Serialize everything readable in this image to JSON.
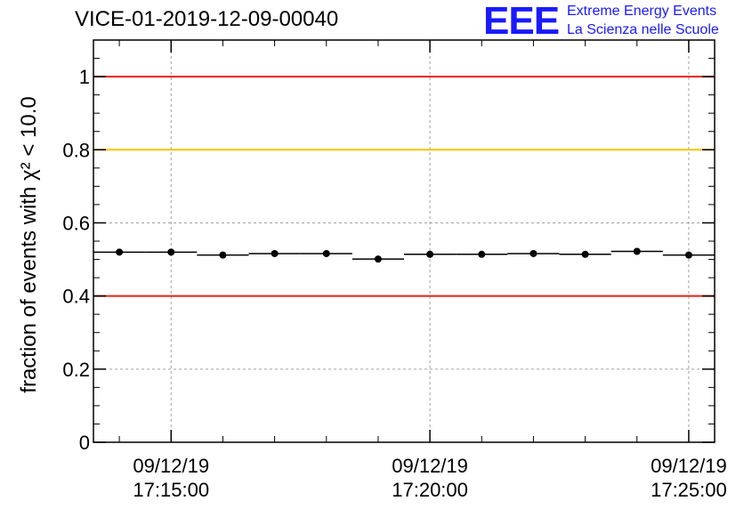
{
  "header": {
    "title": "VICE-01-2019-12-09-00040",
    "logo_text": "EEE",
    "logo_line1": "Extreme Energy Events",
    "logo_line2": "La Scienza nelle Scuole"
  },
  "chart_data": {
    "type": "scatter",
    "title": "VICE-01-2019-12-09-00040",
    "ylabel": "fraction of events with χ² < 10.0",
    "xlabel": "",
    "ylim": [
      0,
      1.1
    ],
    "yticks": [
      0,
      0.2,
      0.4,
      0.6,
      0.8,
      1
    ],
    "ytick_labels": [
      "0",
      "0.2",
      "0.4",
      "0.6",
      "0.8",
      "1"
    ],
    "xlim_minutes": [
      -1.5,
      10.5
    ],
    "xticks": [
      {
        "minute": 0,
        "date": "09/12/19",
        "time": "17:15:00"
      },
      {
        "minute": 5,
        "date": "09/12/19",
        "time": "17:20:00"
      },
      {
        "minute": 10,
        "date": "09/12/19",
        "time": "17:25:00"
      }
    ],
    "minor_xticks_minutes": [
      -1,
      1,
      2,
      3,
      4,
      6,
      7,
      8,
      9
    ],
    "bin_width_minutes": 1,
    "points": [
      {
        "minute": -1,
        "value": 0.52
      },
      {
        "minute": 0,
        "value": 0.52
      },
      {
        "minute": 1,
        "value": 0.512
      },
      {
        "minute": 2,
        "value": 0.516
      },
      {
        "minute": 3,
        "value": 0.516
      },
      {
        "minute": 4,
        "value": 0.501
      },
      {
        "minute": 5,
        "value": 0.514
      },
      {
        "minute": 6,
        "value": 0.514
      },
      {
        "minute": 7,
        "value": 0.516
      },
      {
        "minute": 8,
        "value": 0.514
      },
      {
        "minute": 9,
        "value": 0.522
      },
      {
        "minute": 10,
        "value": 0.512
      }
    ],
    "reference_lines": [
      {
        "value": 1.0,
        "color": "#e8201a"
      },
      {
        "value": 0.8,
        "color": "#f5c400"
      },
      {
        "value": 0.4,
        "color": "#e8201a"
      }
    ],
    "grid": true
  }
}
